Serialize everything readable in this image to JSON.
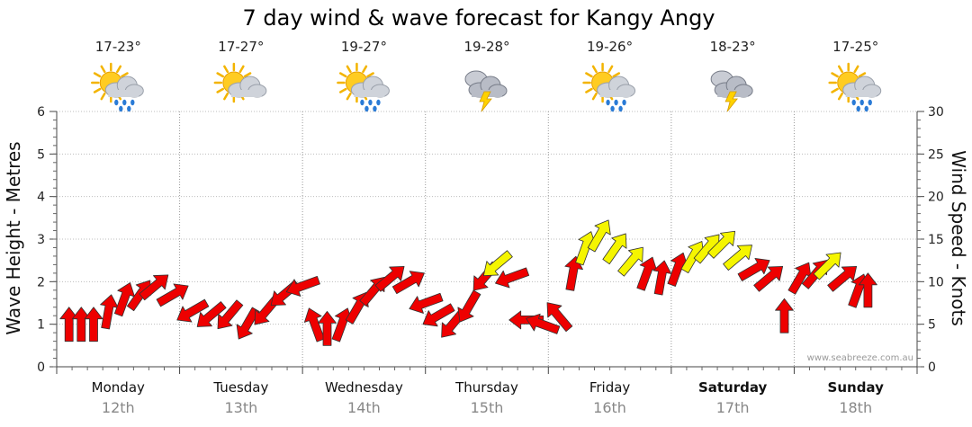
{
  "chart_data": {
    "type": "line",
    "title": "7 day wind & wave forecast for Kangy Angy",
    "ylabel_left": "Wave Height - Metres",
    "ylabel_right": "Wind Speed - Knots",
    "ylim_left": [
      0,
      6
    ],
    "ylim_right": [
      0,
      30
    ],
    "yticks_left": [
      "0",
      "1",
      "2",
      "3",
      "4",
      "5",
      "6"
    ],
    "yticks_right": [
      "0",
      "5",
      "10",
      "15",
      "20",
      "25",
      "30"
    ],
    "watermark": "www.seabreeze.com.au",
    "days": [
      {
        "name": "Monday",
        "date": "12th",
        "temp": "17-23°",
        "icon": "sun-cloud-rain-icon",
        "bold": false
      },
      {
        "name": "Tuesday",
        "date": "13th",
        "temp": "17-27°",
        "icon": "sun-cloud-icon",
        "bold": false
      },
      {
        "name": "Wednesday",
        "date": "14th",
        "temp": "19-27°",
        "icon": "sun-cloud-rain-icon",
        "bold": false
      },
      {
        "name": "Thursday",
        "date": "15th",
        "temp": "19-28°",
        "icon": "storm-cloud-icon",
        "bold": false
      },
      {
        "name": "Friday",
        "date": "16th",
        "temp": "19-26°",
        "icon": "sun-cloud-rain-icon",
        "bold": false
      },
      {
        "name": "Saturday",
        "date": "17th",
        "temp": "18-23°",
        "icon": "storm-cloud-icon",
        "bold": true
      },
      {
        "name": "Sunday",
        "date": "18th",
        "temp": "17-25°",
        "icon": "sun-cloud-rain-icon",
        "bold": true
      }
    ],
    "wind_series": {
      "name": "Wind speed (knots) with direction arrows",
      "colors": {
        "strong": "#ee0000",
        "light": "#f5f500"
      },
      "points": [
        {
          "t": 0.1,
          "kt": 5,
          "dir": 180,
          "c": "strong"
        },
        {
          "t": 0.2,
          "kt": 5,
          "dir": 180,
          "c": "strong"
        },
        {
          "t": 0.3,
          "kt": 5,
          "dir": 180,
          "c": "strong"
        },
        {
          "t": 0.42,
          "kt": 6.5,
          "dir": 190,
          "c": "strong"
        },
        {
          "t": 0.55,
          "kt": 8,
          "dir": 200,
          "c": "strong"
        },
        {
          "t": 0.68,
          "kt": 8.5,
          "dir": 215,
          "c": "strong"
        },
        {
          "t": 0.8,
          "kt": 9.5,
          "dir": 230,
          "c": "strong"
        },
        {
          "t": 0.95,
          "kt": 8.5,
          "dir": 240,
          "c": "strong"
        },
        {
          "t": 1.1,
          "kt": 6.5,
          "dir": 60,
          "c": "strong"
        },
        {
          "t": 1.25,
          "kt": 6,
          "dir": 50,
          "c": "strong"
        },
        {
          "t": 1.4,
          "kt": 6,
          "dir": 40,
          "c": "strong"
        },
        {
          "t": 1.55,
          "kt": 5,
          "dir": 30,
          "c": "strong"
        },
        {
          "t": 1.7,
          "kt": 6.5,
          "dir": 40,
          "c": "strong"
        },
        {
          "t": 1.85,
          "kt": 8.5,
          "dir": 50,
          "c": "strong"
        },
        {
          "t": 2.0,
          "kt": 9.5,
          "dir": 70,
          "c": "strong"
        },
        {
          "t": 2.1,
          "kt": 5,
          "dir": 160,
          "c": "strong"
        },
        {
          "t": 2.2,
          "kt": 4.5,
          "dir": 180,
          "c": "strong"
        },
        {
          "t": 2.32,
          "kt": 5,
          "dir": 200,
          "c": "strong"
        },
        {
          "t": 2.45,
          "kt": 7,
          "dir": 210,
          "c": "strong"
        },
        {
          "t": 2.58,
          "kt": 9,
          "dir": 220,
          "c": "strong"
        },
        {
          "t": 2.72,
          "kt": 10.5,
          "dir": 230,
          "c": "strong"
        },
        {
          "t": 2.87,
          "kt": 10,
          "dir": 240,
          "c": "strong"
        },
        {
          "t": 3.0,
          "kt": 7.5,
          "dir": 70,
          "c": "strong"
        },
        {
          "t": 3.1,
          "kt": 6,
          "dir": 60,
          "c": "strong"
        },
        {
          "t": 3.22,
          "kt": 5,
          "dir": 40,
          "c": "strong"
        },
        {
          "t": 3.35,
          "kt": 7,
          "dir": 30,
          "c": "strong"
        },
        {
          "t": 3.48,
          "kt": 10.5,
          "dir": 40,
          "c": "strong"
        },
        {
          "t": 3.58,
          "kt": 12,
          "dir": 50,
          "c": "light"
        },
        {
          "t": 3.7,
          "kt": 10.5,
          "dir": 70,
          "c": "strong"
        },
        {
          "t": 3.82,
          "kt": 5.5,
          "dir": 90,
          "c": "strong"
        },
        {
          "t": 3.95,
          "kt": 5,
          "dir": 110,
          "c": "strong"
        },
        {
          "t": 4.08,
          "kt": 6,
          "dir": 140,
          "c": "strong"
        },
        {
          "t": 4.2,
          "kt": 11,
          "dir": 190,
          "c": "strong"
        },
        {
          "t": 4.3,
          "kt": 14,
          "dir": 200,
          "c": "light"
        },
        {
          "t": 4.42,
          "kt": 15.5,
          "dir": 210,
          "c": "light"
        },
        {
          "t": 4.55,
          "kt": 14,
          "dir": 215,
          "c": "light"
        },
        {
          "t": 4.68,
          "kt": 12.5,
          "dir": 220,
          "c": "light"
        },
        {
          "t": 4.8,
          "kt": 11,
          "dir": 200,
          "c": "strong"
        },
        {
          "t": 4.92,
          "kt": 10.5,
          "dir": 190,
          "c": "strong"
        },
        {
          "t": 5.05,
          "kt": 11.5,
          "dir": 200,
          "c": "strong"
        },
        {
          "t": 5.18,
          "kt": 13,
          "dir": 210,
          "c": "light"
        },
        {
          "t": 5.3,
          "kt": 14,
          "dir": 220,
          "c": "light"
        },
        {
          "t": 5.42,
          "kt": 14.5,
          "dir": 225,
          "c": "light"
        },
        {
          "t": 5.55,
          "kt": 13,
          "dir": 230,
          "c": "light"
        },
        {
          "t": 5.68,
          "kt": 11.5,
          "dir": 240,
          "c": "strong"
        },
        {
          "t": 5.8,
          "kt": 10.5,
          "dir": 230,
          "c": "strong"
        },
        {
          "t": 5.92,
          "kt": 6,
          "dir": 180,
          "c": "strong"
        },
        {
          "t": 6.05,
          "kt": 10.5,
          "dir": 210,
          "c": "strong"
        },
        {
          "t": 6.18,
          "kt": 11,
          "dir": 220,
          "c": "strong"
        },
        {
          "t": 6.28,
          "kt": 12,
          "dir": 225,
          "c": "light"
        },
        {
          "t": 6.4,
          "kt": 10.5,
          "dir": 230,
          "c": "strong"
        },
        {
          "t": 6.52,
          "kt": 9,
          "dir": 200,
          "c": "strong"
        },
        {
          "t": 6.6,
          "kt": 9,
          "dir": 180,
          "c": "strong"
        }
      ]
    }
  }
}
